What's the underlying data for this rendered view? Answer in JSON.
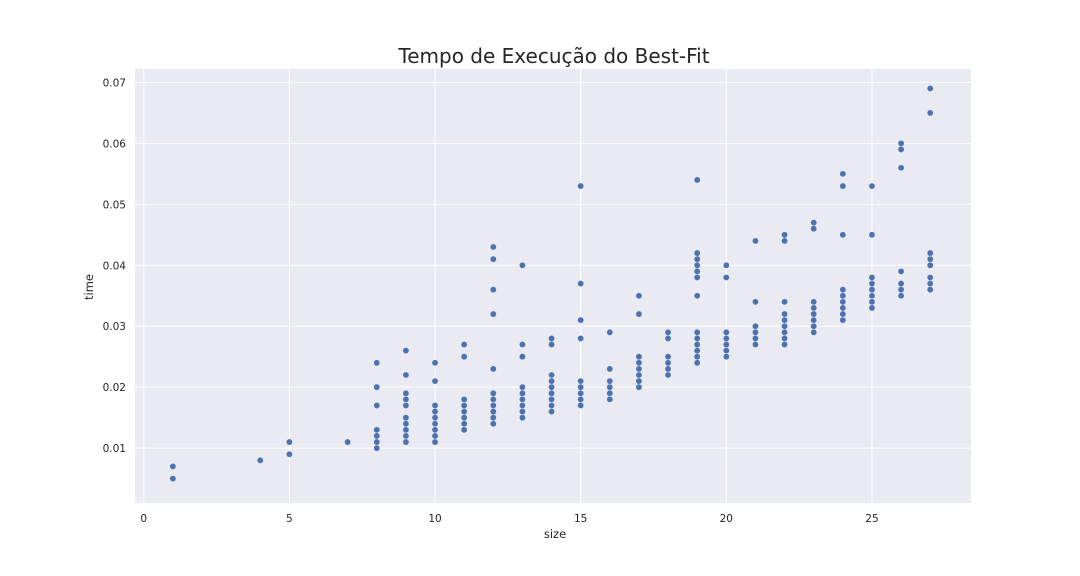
{
  "chart_data": {
    "type": "scatter",
    "title": "Tempo de Execução do Best-Fit",
    "xlabel": "size",
    "ylabel": "time",
    "xlim": [
      -0.3,
      28.4
    ],
    "ylim": [
      0.001,
      0.0722
    ],
    "xticks": [
      0,
      5,
      10,
      15,
      20,
      25
    ],
    "yticks": [
      0.01,
      0.02,
      0.03,
      0.04,
      0.05,
      0.06,
      0.07
    ],
    "ytick_labels": [
      "0.01",
      "0.02",
      "0.03",
      "0.04",
      "0.05",
      "0.06",
      "0.07"
    ],
    "grid": true,
    "colors": {
      "background": "#eaeaf2",
      "grid": "#ffffff",
      "marker": "#4c72b0",
      "text": "#262626"
    },
    "points": [
      {
        "x": 1,
        "y": 0.007
      },
      {
        "x": 1,
        "y": 0.005
      },
      {
        "x": 4,
        "y": 0.008
      },
      {
        "x": 5,
        "y": 0.011
      },
      {
        "x": 5,
        "y": 0.009
      },
      {
        "x": 7,
        "y": 0.011
      },
      {
        "x": 8,
        "y": 0.024
      },
      {
        "x": 8,
        "y": 0.02
      },
      {
        "x": 8,
        "y": 0.017
      },
      {
        "x": 8,
        "y": 0.013
      },
      {
        "x": 8,
        "y": 0.012
      },
      {
        "x": 8,
        "y": 0.011
      },
      {
        "x": 8,
        "y": 0.01
      },
      {
        "x": 9,
        "y": 0.026
      },
      {
        "x": 9,
        "y": 0.022
      },
      {
        "x": 9,
        "y": 0.019
      },
      {
        "x": 9,
        "y": 0.018
      },
      {
        "x": 9,
        "y": 0.017
      },
      {
        "x": 9,
        "y": 0.015
      },
      {
        "x": 9,
        "y": 0.014
      },
      {
        "x": 9,
        "y": 0.013
      },
      {
        "x": 9,
        "y": 0.012
      },
      {
        "x": 9,
        "y": 0.011
      },
      {
        "x": 10,
        "y": 0.024
      },
      {
        "x": 10,
        "y": 0.021
      },
      {
        "x": 10,
        "y": 0.017
      },
      {
        "x": 10,
        "y": 0.016
      },
      {
        "x": 10,
        "y": 0.015
      },
      {
        "x": 10,
        "y": 0.014
      },
      {
        "x": 10,
        "y": 0.013
      },
      {
        "x": 10,
        "y": 0.012
      },
      {
        "x": 10,
        "y": 0.011
      },
      {
        "x": 11,
        "y": 0.027
      },
      {
        "x": 11,
        "y": 0.025
      },
      {
        "x": 11,
        "y": 0.018
      },
      {
        "x": 11,
        "y": 0.017
      },
      {
        "x": 11,
        "y": 0.016
      },
      {
        "x": 11,
        "y": 0.015
      },
      {
        "x": 11,
        "y": 0.014
      },
      {
        "x": 11,
        "y": 0.013
      },
      {
        "x": 12,
        "y": 0.043
      },
      {
        "x": 12,
        "y": 0.041
      },
      {
        "x": 12,
        "y": 0.036
      },
      {
        "x": 12,
        "y": 0.032
      },
      {
        "x": 12,
        "y": 0.023
      },
      {
        "x": 12,
        "y": 0.019
      },
      {
        "x": 12,
        "y": 0.018
      },
      {
        "x": 12,
        "y": 0.017
      },
      {
        "x": 12,
        "y": 0.016
      },
      {
        "x": 12,
        "y": 0.015
      },
      {
        "x": 12,
        "y": 0.014
      },
      {
        "x": 13,
        "y": 0.04
      },
      {
        "x": 13,
        "y": 0.027
      },
      {
        "x": 13,
        "y": 0.025
      },
      {
        "x": 13,
        "y": 0.02
      },
      {
        "x": 13,
        "y": 0.019
      },
      {
        "x": 13,
        "y": 0.018
      },
      {
        "x": 13,
        "y": 0.017
      },
      {
        "x": 13,
        "y": 0.016
      },
      {
        "x": 13,
        "y": 0.015
      },
      {
        "x": 14,
        "y": 0.028
      },
      {
        "x": 14,
        "y": 0.027
      },
      {
        "x": 14,
        "y": 0.022
      },
      {
        "x": 14,
        "y": 0.021
      },
      {
        "x": 14,
        "y": 0.02
      },
      {
        "x": 14,
        "y": 0.019
      },
      {
        "x": 14,
        "y": 0.018
      },
      {
        "x": 14,
        "y": 0.017
      },
      {
        "x": 14,
        "y": 0.016
      },
      {
        "x": 15,
        "y": 0.053
      },
      {
        "x": 15,
        "y": 0.037
      },
      {
        "x": 15,
        "y": 0.031
      },
      {
        "x": 15,
        "y": 0.028
      },
      {
        "x": 15,
        "y": 0.021
      },
      {
        "x": 15,
        "y": 0.02
      },
      {
        "x": 15,
        "y": 0.019
      },
      {
        "x": 15,
        "y": 0.018
      },
      {
        "x": 15,
        "y": 0.017
      },
      {
        "x": 16,
        "y": 0.029
      },
      {
        "x": 16,
        "y": 0.023
      },
      {
        "x": 16,
        "y": 0.021
      },
      {
        "x": 16,
        "y": 0.02
      },
      {
        "x": 16,
        "y": 0.019
      },
      {
        "x": 16,
        "y": 0.018
      },
      {
        "x": 17,
        "y": 0.035
      },
      {
        "x": 17,
        "y": 0.032
      },
      {
        "x": 17,
        "y": 0.025
      },
      {
        "x": 17,
        "y": 0.024
      },
      {
        "x": 17,
        "y": 0.023
      },
      {
        "x": 17,
        "y": 0.022
      },
      {
        "x": 17,
        "y": 0.021
      },
      {
        "x": 17,
        "y": 0.02
      },
      {
        "x": 18,
        "y": 0.029
      },
      {
        "x": 18,
        "y": 0.028
      },
      {
        "x": 18,
        "y": 0.025
      },
      {
        "x": 18,
        "y": 0.024
      },
      {
        "x": 18,
        "y": 0.023
      },
      {
        "x": 18,
        "y": 0.022
      },
      {
        "x": 19,
        "y": 0.054
      },
      {
        "x": 19,
        "y": 0.042
      },
      {
        "x": 19,
        "y": 0.041
      },
      {
        "x": 19,
        "y": 0.04
      },
      {
        "x": 19,
        "y": 0.039
      },
      {
        "x": 19,
        "y": 0.038
      },
      {
        "x": 19,
        "y": 0.035
      },
      {
        "x": 19,
        "y": 0.029
      },
      {
        "x": 19,
        "y": 0.028
      },
      {
        "x": 19,
        "y": 0.027
      },
      {
        "x": 19,
        "y": 0.026
      },
      {
        "x": 19,
        "y": 0.025
      },
      {
        "x": 19,
        "y": 0.024
      },
      {
        "x": 20,
        "y": 0.04
      },
      {
        "x": 20,
        "y": 0.038
      },
      {
        "x": 20,
        "y": 0.029
      },
      {
        "x": 20,
        "y": 0.028
      },
      {
        "x": 20,
        "y": 0.027
      },
      {
        "x": 20,
        "y": 0.026
      },
      {
        "x": 20,
        "y": 0.025
      },
      {
        "x": 21,
        "y": 0.044
      },
      {
        "x": 21,
        "y": 0.034
      },
      {
        "x": 21,
        "y": 0.03
      },
      {
        "x": 21,
        "y": 0.029
      },
      {
        "x": 21,
        "y": 0.028
      },
      {
        "x": 21,
        "y": 0.027
      },
      {
        "x": 22,
        "y": 0.045
      },
      {
        "x": 22,
        "y": 0.044
      },
      {
        "x": 22,
        "y": 0.034
      },
      {
        "x": 22,
        "y": 0.032
      },
      {
        "x": 22,
        "y": 0.031
      },
      {
        "x": 22,
        "y": 0.03
      },
      {
        "x": 22,
        "y": 0.029
      },
      {
        "x": 22,
        "y": 0.028
      },
      {
        "x": 22,
        "y": 0.027
      },
      {
        "x": 23,
        "y": 0.047
      },
      {
        "x": 23,
        "y": 0.046
      },
      {
        "x": 23,
        "y": 0.034
      },
      {
        "x": 23,
        "y": 0.033
      },
      {
        "x": 23,
        "y": 0.032
      },
      {
        "x": 23,
        "y": 0.031
      },
      {
        "x": 23,
        "y": 0.03
      },
      {
        "x": 23,
        "y": 0.029
      },
      {
        "x": 24,
        "y": 0.055
      },
      {
        "x": 24,
        "y": 0.053
      },
      {
        "x": 24,
        "y": 0.045
      },
      {
        "x": 24,
        "y": 0.036
      },
      {
        "x": 24,
        "y": 0.035
      },
      {
        "x": 24,
        "y": 0.034
      },
      {
        "x": 24,
        "y": 0.033
      },
      {
        "x": 24,
        "y": 0.032
      },
      {
        "x": 24,
        "y": 0.031
      },
      {
        "x": 25,
        "y": 0.053
      },
      {
        "x": 25,
        "y": 0.045
      },
      {
        "x": 25,
        "y": 0.038
      },
      {
        "x": 25,
        "y": 0.037
      },
      {
        "x": 25,
        "y": 0.036
      },
      {
        "x": 25,
        "y": 0.035
      },
      {
        "x": 25,
        "y": 0.034
      },
      {
        "x": 25,
        "y": 0.033
      },
      {
        "x": 26,
        "y": 0.06
      },
      {
        "x": 26,
        "y": 0.059
      },
      {
        "x": 26,
        "y": 0.056
      },
      {
        "x": 26,
        "y": 0.039
      },
      {
        "x": 26,
        "y": 0.037
      },
      {
        "x": 26,
        "y": 0.036
      },
      {
        "x": 26,
        "y": 0.035
      },
      {
        "x": 27,
        "y": 0.069
      },
      {
        "x": 27,
        "y": 0.065
      },
      {
        "x": 27,
        "y": 0.042
      },
      {
        "x": 27,
        "y": 0.041
      },
      {
        "x": 27,
        "y": 0.04
      },
      {
        "x": 27,
        "y": 0.038
      },
      {
        "x": 27,
        "y": 0.037
      },
      {
        "x": 27,
        "y": 0.036
      }
    ]
  }
}
